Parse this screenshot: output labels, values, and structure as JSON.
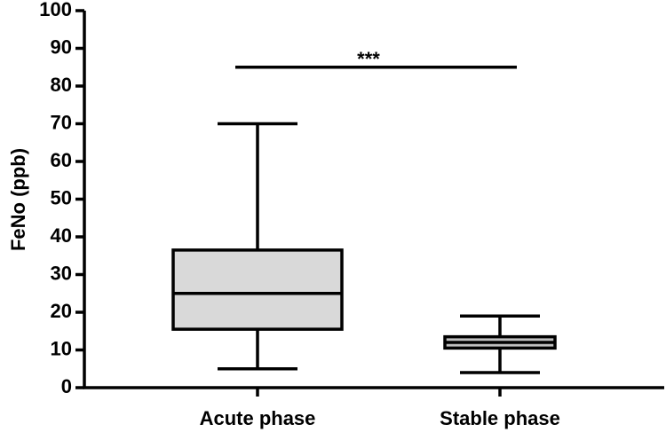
{
  "chart_data": {
    "type": "box",
    "y_label": "FeNo (ppb)",
    "categories": [
      "Acute phase",
      "Stable phase"
    ],
    "boxes": [
      {
        "min": 5,
        "q1": 15.5,
        "median": 25,
        "q3": 36.5,
        "max": 70,
        "color": "#d9d9d9"
      },
      {
        "min": 4,
        "q1": 10.5,
        "median": 12,
        "q3": 13.5,
        "max": 19,
        "color": "#bfbfbf"
      }
    ],
    "annotation": {
      "text": "***",
      "y": 85
    },
    "ylim": [
      0,
      100
    ],
    "yticks": [
      0,
      10,
      20,
      30,
      40,
      50,
      60,
      70,
      80,
      90,
      100
    ]
  }
}
